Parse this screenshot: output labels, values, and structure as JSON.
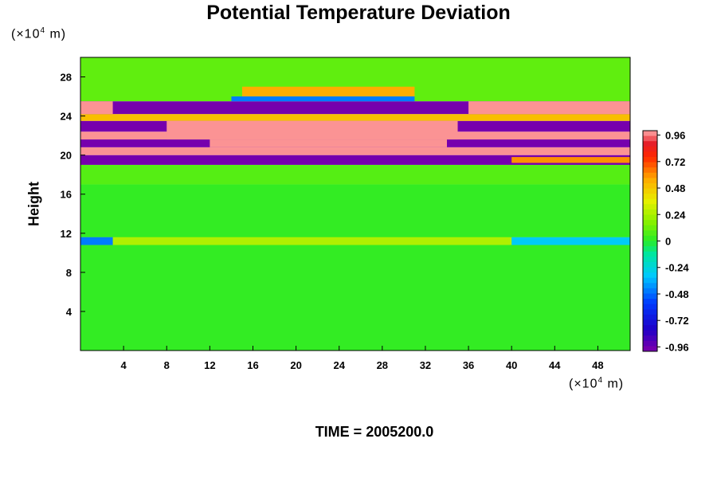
{
  "chart_data": {
    "type": "heatmap",
    "title": "Potential Temperature Deviation",
    "ylabel": "Height",
    "x_unit_prefix": "(×10",
    "x_unit_exp": "4",
    "x_unit_suffix": " m)",
    "y_unit_prefix": "(×10",
    "y_unit_exp": "4",
    "y_unit_suffix": " m)",
    "xlim": [
      0,
      51
    ],
    "ylim": [
      0,
      30
    ],
    "x_ticks": [
      4,
      8,
      12,
      16,
      20,
      24,
      28,
      32,
      36,
      40,
      44,
      48
    ],
    "y_ticks": [
      4,
      8,
      12,
      16,
      20,
      24,
      28
    ],
    "colorbar": {
      "min": -1.0,
      "max": 1.0,
      "tick_values": [
        0.96,
        0.72,
        0.48,
        0.24,
        0,
        -0.24,
        -0.48,
        -0.72,
        -0.96
      ],
      "tick_labels": [
        "0.96",
        "0.72",
        "0.48",
        "0.24",
        "0",
        "-0.24",
        "-0.48",
        "-0.72",
        "-0.96"
      ]
    },
    "field_layers": [
      {
        "x0": 0,
        "x1": 51,
        "y0": 0,
        "y1": 17,
        "value": 0.02
      },
      {
        "x0": 0,
        "x1": 51,
        "y0": 17,
        "y1": 19,
        "value": 0.08
      },
      {
        "x0": 0,
        "x1": 51,
        "y0": 25.5,
        "y1": 30,
        "value": 0.1
      },
      {
        "x0": 0,
        "x1": 51,
        "y0": 10.8,
        "y1": 11.6,
        "value": 0.25
      },
      {
        "x0": 0,
        "x1": 3,
        "y0": 10.8,
        "y1": 11.6,
        "value": -0.45
      },
      {
        "x0": 40,
        "x1": 51,
        "y0": 10.8,
        "y1": 11.6,
        "value": -0.3
      },
      {
        "x0": 0,
        "x1": 51,
        "y0": 19.0,
        "y1": 20.0,
        "value": -0.98
      },
      {
        "x0": 0,
        "x1": 51,
        "y0": 20.0,
        "y1": 20.8,
        "value": 0.98
      },
      {
        "x0": 0,
        "x1": 51,
        "y0": 20.8,
        "y1": 21.6,
        "value": -0.98
      },
      {
        "x0": 0,
        "x1": 51,
        "y0": 21.6,
        "y1": 22.4,
        "value": 0.98
      },
      {
        "x0": 0,
        "x1": 51,
        "y0": 22.4,
        "y1": 23.5,
        "value": -0.98
      },
      {
        "x0": 0,
        "x1": 51,
        "y0": 23.5,
        "y1": 24.2,
        "value": 0.5
      },
      {
        "x0": 0,
        "x1": 51,
        "y0": 24.2,
        "y1": 25.5,
        "value": -0.98
      },
      {
        "x0": 0,
        "x1": 3,
        "y0": 24.2,
        "y1": 25.5,
        "value": 0.98
      },
      {
        "x0": 36,
        "x1": 51,
        "y0": 24.2,
        "y1": 25.5,
        "value": 0.98
      },
      {
        "x0": 8,
        "x1": 35,
        "y0": 21.6,
        "y1": 23.5,
        "value": 0.98
      },
      {
        "x0": 12,
        "x1": 34,
        "y0": 20.8,
        "y1": 21.6,
        "value": 0.98
      },
      {
        "x0": 15,
        "x1": 31,
        "y0": 26.0,
        "y1": 27.0,
        "value": 0.55
      },
      {
        "x0": 14,
        "x1": 31,
        "y0": 25.5,
        "y1": 26.0,
        "value": -0.45
      },
      {
        "x0": 40,
        "x1": 51,
        "y0": 19.2,
        "y1": 19.8,
        "value": 0.6
      }
    ],
    "time_label": "TIME = 2005200.0"
  }
}
